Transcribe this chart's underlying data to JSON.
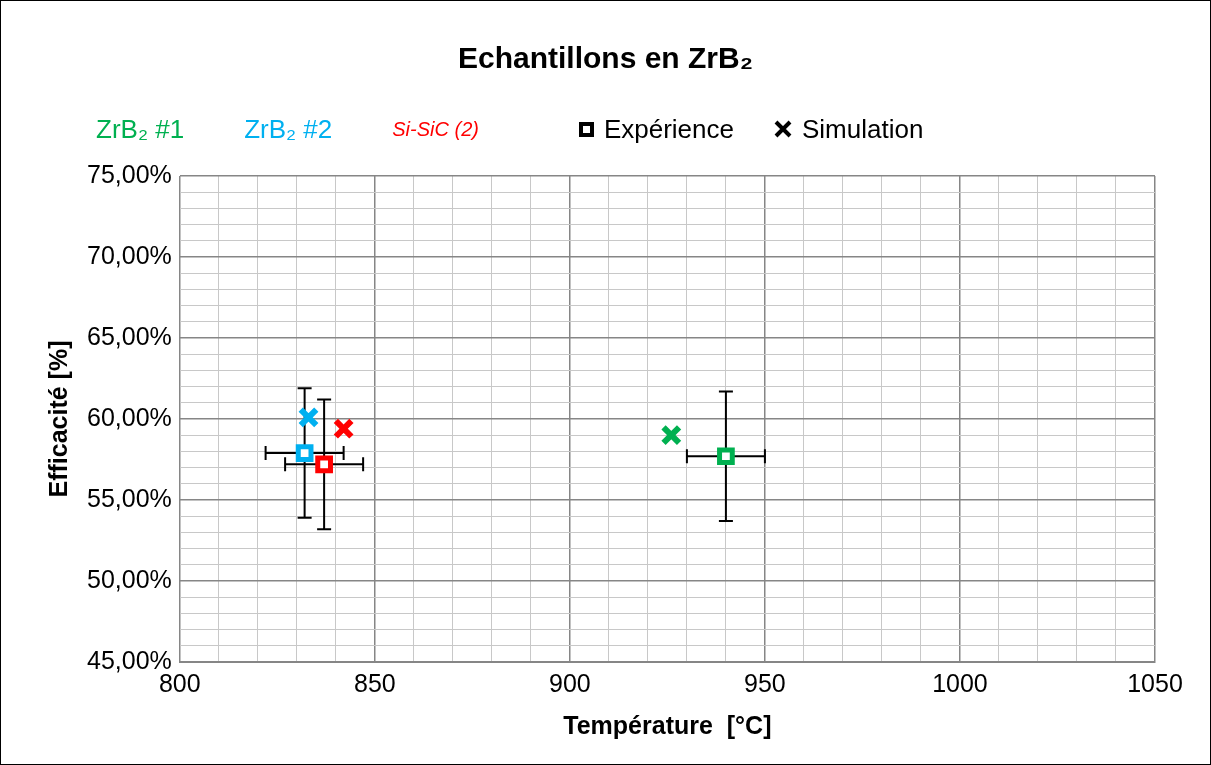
{
  "chart_data": {
    "type": "scatter",
    "title": "Echantillons en ZrB₂",
    "xlabel": "Température  [°C]",
    "ylabel": "Efficacité [%]",
    "legend": "top",
    "grid": true,
    "xlim": [
      800,
      1050
    ],
    "xticks": [
      800,
      {
        "value": 810,
        "label": null
      },
      {
        "value": 820,
        "label": null
      },
      {
        "value": 830,
        "label": null
      },
      {
        "value": 840,
        "label": null
      },
      850,
      {
        "value": 860,
        "label": null
      },
      {
        "value": 870,
        "label": null
      },
      {
        "value": 880,
        "label": null
      },
      {
        "value": 890,
        "label": null
      },
      900,
      {
        "value": 910,
        "label": null
      },
      {
        "value": 920,
        "label": null
      },
      {
        "value": 930,
        "label": null
      },
      {
        "value": 940,
        "label": null
      },
      950,
      {
        "value": 960,
        "label": null
      },
      {
        "value": 970,
        "label": null
      },
      {
        "value": 980,
        "label": null
      },
      {
        "value": 990,
        "label": null
      },
      1000,
      {
        "value": 1010,
        "label": null
      },
      {
        "value": 1020,
        "label": null
      },
      {
        "value": 1030,
        "label": null
      },
      {
        "value": 1040,
        "label": null
      },
      1050
    ],
    "ylim": [
      45,
      75
    ],
    "yticks": [
      {
        "value": 45,
        "label": "45,00%"
      },
      {
        "value": 46,
        "label": null
      },
      {
        "value": 47,
        "label": null
      },
      {
        "value": 48,
        "label": null
      },
      {
        "value": 49,
        "label": null
      },
      {
        "value": 50,
        "label": "50,00%"
      },
      {
        "value": 51,
        "label": null
      },
      {
        "value": 52,
        "label": null
      },
      {
        "value": 53,
        "label": null
      },
      {
        "value": 54,
        "label": null
      },
      {
        "value": 55,
        "label": "55,00%"
      },
      {
        "value": 56,
        "label": null
      },
      {
        "value": 57,
        "label": null
      },
      {
        "value": 58,
        "label": null
      },
      {
        "value": 59,
        "label": null
      },
      {
        "value": 60,
        "label": "60,00%"
      },
      {
        "value": 61,
        "label": null
      },
      {
        "value": 62,
        "label": null
      },
      {
        "value": 63,
        "label": null
      },
      {
        "value": 64,
        "label": null
      },
      {
        "value": 65,
        "label": "65,00%"
      },
      {
        "value": 66,
        "label": null
      },
      {
        "value": 67,
        "label": null
      },
      {
        "value": 68,
        "label": null
      },
      {
        "value": 69,
        "label": null
      },
      {
        "value": 70,
        "label": "70,00%"
      },
      {
        "value": 71,
        "label": null
      },
      {
        "value": 72,
        "label": null
      },
      {
        "value": 73,
        "label": null
      },
      {
        "value": 74,
        "label": null
      },
      {
        "value": 75,
        "label": "75,00%"
      }
    ],
    "annotations": [
      "Expérience",
      "Simulation"
    ],
    "series": [
      {
        "name": "ZrB₂ #1",
        "color": "#00b050",
        "marker": "square",
        "x": [
          940
        ],
        "values": [
          57.7
        ],
        "errors": [
          4
        ],
        "xerrors": [
          10
        ]
      },
      {
        "color": "#00b050",
        "marker": "cross",
        "x": [
          926
        ],
        "values": [
          59.0
        ]
      },
      {
        "name": "ZrB₂ #2",
        "color": "#00b0f0",
        "marker": "square",
        "x": [
          832
        ],
        "values": [
          57.9
        ],
        "errors": [
          4
        ],
        "xerrors": [
          10
        ]
      },
      {
        "color": "#00b0f0",
        "marker": "cross",
        "x": [
          833
        ],
        "values": [
          60.1
        ]
      },
      {
        "name": "Si-SiC (2)",
        "color": "#ff0000",
        "marker": "square",
        "x": [
          837
        ],
        "values": [
          57.2
        ],
        "errors": [
          4
        ],
        "xerrors": [
          10
        ]
      },
      {
        "color": "#ff0000",
        "marker": "cross",
        "x": [
          842
        ],
        "values": [
          59.4
        ]
      }
    ]
  }
}
